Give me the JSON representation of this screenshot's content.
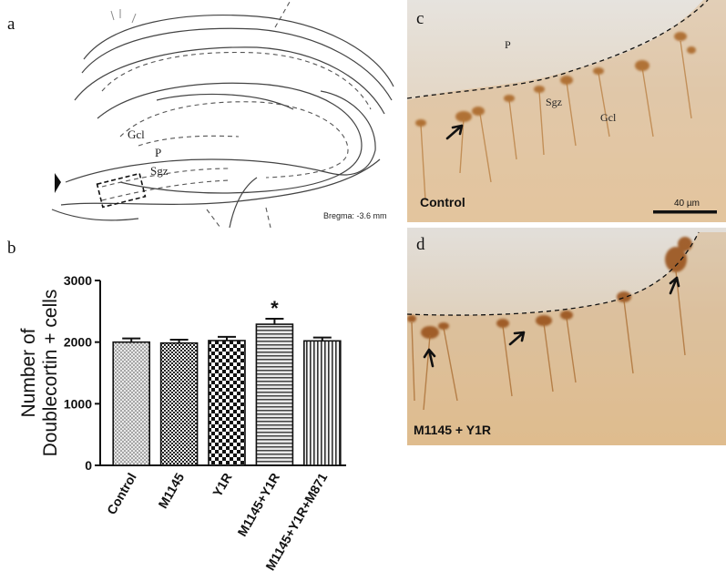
{
  "panels": {
    "a": "a",
    "b": "b",
    "c": "c",
    "d": "d"
  },
  "schematic": {
    "labels": {
      "gcl": "Gcl",
      "p": "P",
      "sgz": "Sgz"
    },
    "bregma": "Bregma: -3.6 mm"
  },
  "chart_data": {
    "type": "bar",
    "categories": [
      "Control",
      "M1145",
      "Y1R",
      "M1145+Y1R",
      "M1145+Y1R+M871"
    ],
    "values": [
      2000,
      1985,
      2025,
      2290,
      2020
    ],
    "errors": [
      60,
      55,
      60,
      90,
      55
    ],
    "ylabel": "Number of Doublecortin + cells",
    "ylabel_lines": [
      "Number of",
      "Doublecortin + cells"
    ],
    "ylim": [
      0,
      3000
    ],
    "yticks": [
      "0",
      "1000",
      "2000",
      "3000"
    ],
    "significance": [
      "",
      "",
      "",
      "*",
      ""
    ],
    "patterns": [
      "dots",
      "fine-check",
      "checker",
      "horizontal",
      "vertical"
    ]
  },
  "micrographs": {
    "c": {
      "labels": {
        "p": "P",
        "sgz": "Sgz",
        "gcl": "Gcl"
      },
      "condition": "Control",
      "scale": "40 µm"
    },
    "d": {
      "condition": "M1145 + Y1R"
    }
  }
}
